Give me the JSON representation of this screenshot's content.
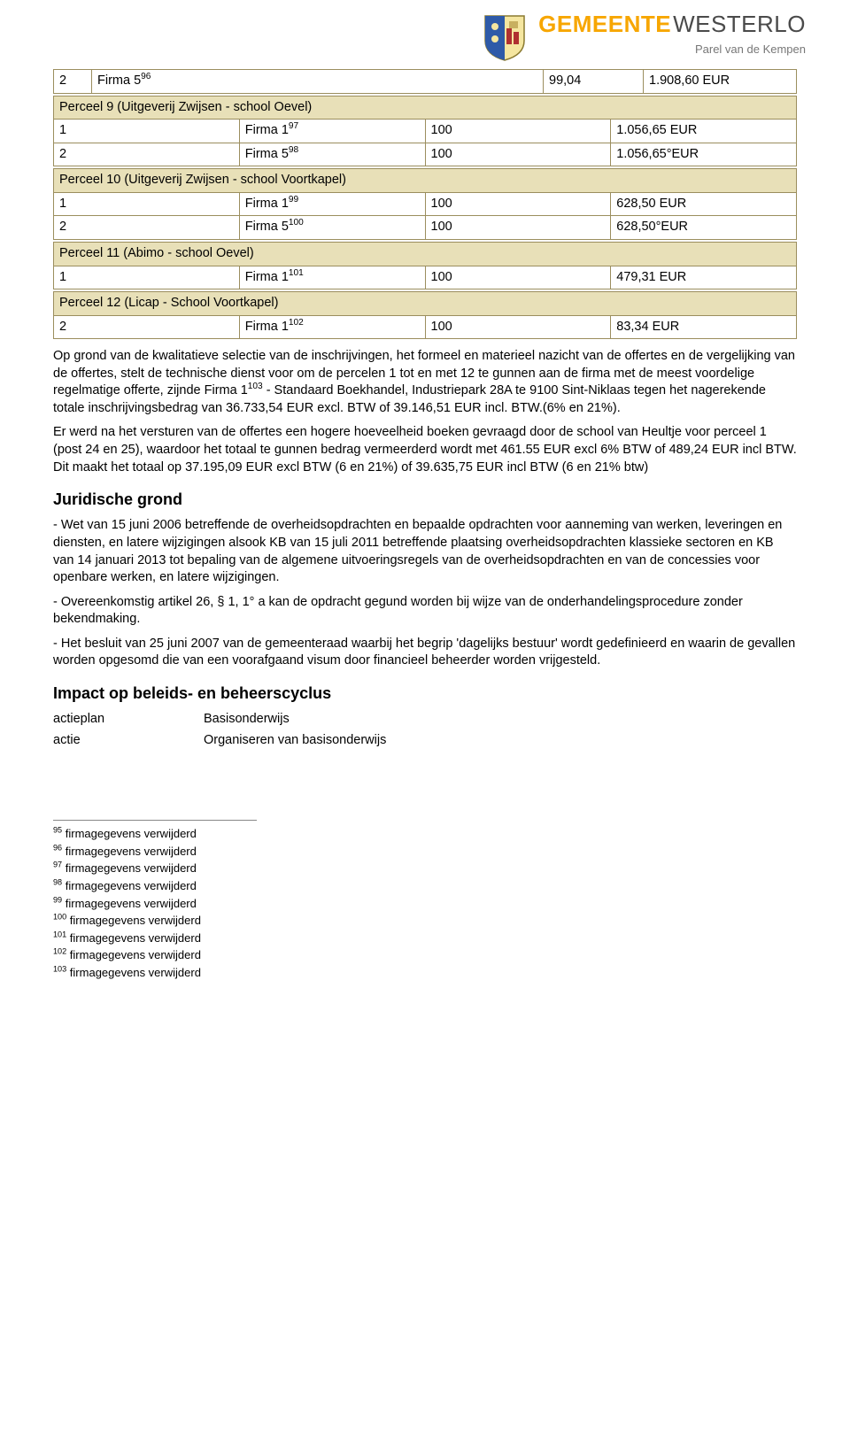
{
  "brand": {
    "word1": "GEMEENTE",
    "word2": "WESTERLO",
    "subtitle": "Parel van de Kempen"
  },
  "colors": {
    "header_bg": "#e8e0b8",
    "border": "#9b8e5e",
    "brand_orange": "#f7a600",
    "brand_grey": "#4a4a4a"
  },
  "tables": [
    {
      "header": null,
      "rows": [
        {
          "idx": "2",
          "name": "Firma 5",
          "sup": "96",
          "v1": "99,04",
          "v2": "1.908,60 EUR"
        }
      ]
    },
    {
      "header": "Perceel 9 (Uitgeverij Zwijsen - school Oevel)",
      "rows": [
        {
          "idx": "1",
          "name": "Firma 1",
          "sup": "97",
          "v1": "100",
          "v2": "1.056,65 EUR"
        },
        {
          "idx": "2",
          "name": "Firma 5",
          "sup": "98",
          "v1": "100",
          "v2": "1.056,65°EUR"
        }
      ]
    },
    {
      "header": "Perceel 10 (Uitgeverij Zwijsen - school Voortkapel)",
      "rows": [
        {
          "idx": "1",
          "name": "Firma 1",
          "sup": "99",
          "v1": "100",
          "v2": "628,50 EUR"
        },
        {
          "idx": "2",
          "name": "Firma 5",
          "sup": "100",
          "v1": "100",
          "v2": "628,50°EUR"
        }
      ]
    },
    {
      "header": "Perceel 11 (Abimo - school Oevel)",
      "rows": [
        {
          "idx": "1",
          "name": "Firma 1",
          "sup": "101",
          "v1": "100",
          "v2": "479,31 EUR"
        }
      ]
    },
    {
      "header": "Perceel 12 (Licap - School Voortkapel)",
      "rows": [
        {
          "idx": "2",
          "name": "Firma 1",
          "sup": "102",
          "v1": "100",
          "v2": "83,34 EUR"
        }
      ]
    }
  ],
  "para1_a": "Op grond van de kwalitatieve selectie van de inschrijvingen, het formeel en materieel nazicht van de offertes en de vergelijking van de offertes, stelt de technische dienst voor om de percelen 1 tot en met 12 te gunnen aan de firma met de meest voordelige regelmatige offerte, zijnde ",
  "para1_firma": "Firma 1",
  "para1_sup": "103",
  "para1_b": " - Standaard Boekhandel, Industriepark 28A te 9100 Sint-Niklaas tegen het nagerekende totale inschrijvingsbedrag van 36.733,54 EUR excl. BTW of 39.146,51 EUR incl. BTW.(6% en 21%).",
  "para2": "Er werd na het versturen van de offertes een hogere hoeveelheid boeken gevraagd door de school van Heultje voor perceel 1 (post 24 en 25), waardoor het totaal te gunnen bedrag vermeerderd wordt met 461.55 EUR excl 6% BTW of 489,24 EUR incl BTW. Dit maakt het totaal op 37.195,09 EUR excl BTW (6 en 21%) of 39.635,75 EUR incl BTW (6 en 21% btw)",
  "h_juridisch": "Juridische grond",
  "jur1": "- Wet van 15 juni 2006 betreffende de overheidsopdrachten en bepaalde opdrachten voor aanneming van werken, leveringen en diensten, en latere wijzigingen alsook KB van 15 juli 2011 betreffende plaatsing overheidsopdrachten klassieke sectoren en KB van 14 januari 2013 tot bepaling van de algemene uitvoeringsregels van de overheidsopdrachten en van de concessies voor openbare werken, en latere wijzigingen.",
  "jur2": "- Overeenkomstig artikel 26, § 1, 1° a kan de opdracht gegund worden bij wijze van de onderhandelingsprocedure zonder bekendmaking.",
  "jur3": "- Het besluit van 25 juni 2007 van de gemeenteraad waarbij het begrip 'dagelijks bestuur' wordt gedefinieerd en waarin de gevallen worden opgesomd die van een voorafgaand visum door financieel beheerder worden vrijgesteld.",
  "h_impact": "Impact op beleids- en beheerscyclus",
  "kv1_k": "actieplan",
  "kv1_v": "Basisonderwijs",
  "kv2_k": "actie",
  "kv2_v": "Organiseren van basisonderwijs",
  "footnotes": [
    {
      "n": "95",
      "t": "firmagegevens verwijderd"
    },
    {
      "n": "96",
      "t": "firmagegevens verwijderd"
    },
    {
      "n": "97",
      "t": "firmagegevens verwijderd"
    },
    {
      "n": "98",
      "t": "firmagegevens verwijderd"
    },
    {
      "n": "99",
      "t": "firmagegevens verwijderd"
    },
    {
      "n": "100",
      "t": "firmagegevens verwijderd"
    },
    {
      "n": "101",
      "t": "firmagegevens verwijderd"
    },
    {
      "n": "102",
      "t": "firmagegevens verwijderd"
    },
    {
      "n": "103",
      "t": "firmagegevens verwijderd"
    }
  ]
}
